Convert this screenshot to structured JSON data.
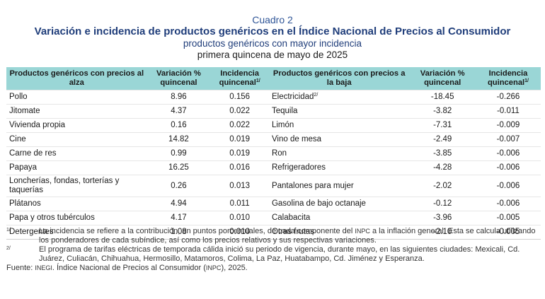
{
  "header": {
    "cuadro": "Cuadro 2",
    "title": "Variación e incidencia de productos genéricos en el Índice Nacional de Precios al Consumidor",
    "subtitle": "productos genéricos con mayor incidencia",
    "period": "primera quincena de mayo de 2025"
  },
  "table": {
    "headers": {
      "up_products": "Productos genéricos con precios al alza",
      "up_variation": "Variación % quincenal",
      "up_incidence": "Incidencia quincenal",
      "up_incidence_note": "1/",
      "down_products": "Productos genéricos con precios a la baja",
      "down_variation": "Variación % quincenal",
      "down_incidence": "Incidencia quincenal",
      "down_incidence_note": "1/"
    },
    "rows": [
      {
        "up_name": "Pollo",
        "up_var": "8.96",
        "up_inc": "0.156",
        "down_name": "Electricidad",
        "down_note": "2/",
        "down_var": "-18.45",
        "down_inc": "-0.266"
      },
      {
        "up_name": "Jitomate",
        "up_var": "4.37",
        "up_inc": "0.022",
        "down_name": "Tequila",
        "down_note": "",
        "down_var": "-3.82",
        "down_inc": "-0.011"
      },
      {
        "up_name": "Vivienda propia",
        "up_var": "0.16",
        "up_inc": "0.022",
        "down_name": "Limón",
        "down_note": "",
        "down_var": "-7.31",
        "down_inc": "-0.009"
      },
      {
        "up_name": "Cine",
        "up_var": "14.82",
        "up_inc": "0.019",
        "down_name": "Vino de mesa",
        "down_note": "",
        "down_var": "-2.49",
        "down_inc": "-0.007"
      },
      {
        "up_name": "Carne de res",
        "up_var": "0.99",
        "up_inc": "0.019",
        "down_name": "Ron",
        "down_note": "",
        "down_var": "-3.85",
        "down_inc": "-0.006"
      },
      {
        "up_name": "Papaya",
        "up_var": "16.25",
        "up_inc": "0.016",
        "down_name": "Refrigeradores",
        "down_note": "",
        "down_var": "-4.28",
        "down_inc": "-0.006"
      },
      {
        "up_name": "Loncherías, fondas, torterías y taquerías",
        "up_var": "0.26",
        "up_inc": "0.013",
        "down_name": "Pantalones para mujer",
        "down_note": "",
        "down_var": "-2.02",
        "down_inc": "-0.006"
      },
      {
        "up_name": "Plátanos",
        "up_var": "4.94",
        "up_inc": "0.011",
        "down_name": "Gasolina de bajo octanaje",
        "down_note": "",
        "down_var": "-0.12",
        "down_inc": "-0.006"
      },
      {
        "up_name": "Papa y otros tubérculos",
        "up_var": "4.17",
        "up_inc": "0.010",
        "down_name": "Calabacita",
        "down_note": "",
        "down_var": "-3.96",
        "down_inc": "-0.005"
      },
      {
        "up_name": "Detergentes",
        "up_var": "1.08",
        "up_inc": "0.010",
        "down_name": "Otras frutas",
        "down_note": "",
        "down_var": "-2.10",
        "down_inc": "-0.005"
      }
    ]
  },
  "notes": {
    "note1_mark": "1/",
    "note1_a": "La incidencia se refiere a la contribución, en puntos porcentuales, de cada componente del ",
    "note1_inpc": "INPC",
    "note1_b": " a la inflación general. Esta se calcula utilizando los ponderadores de cada subíndice, así como los precios relativos y sus respectivas variaciones.",
    "note2_mark": "2/",
    "note2": "El programa de tarifas eléctricas de temporada cálida inició su periodo de vigencia, durante mayo, en las siguientes ciudades: Mexicali, Cd. Juárez, Culiacán, Chihuahua, Hermosillo, Matamoros, Colima, La Paz, Huatabampo, Cd. Jiménez y Esperanza.",
    "source_a": "Fuente: ",
    "source_inegi": "INEGI",
    "source_b": ". Índice Nacional de Precios al Consumidor (",
    "source_inpc": "INPC",
    "source_c": "), 2025."
  },
  "colors": {
    "header_bg": "#9ad6d6",
    "title": "#1f3d7a",
    "cuadro": "#2f5597"
  }
}
